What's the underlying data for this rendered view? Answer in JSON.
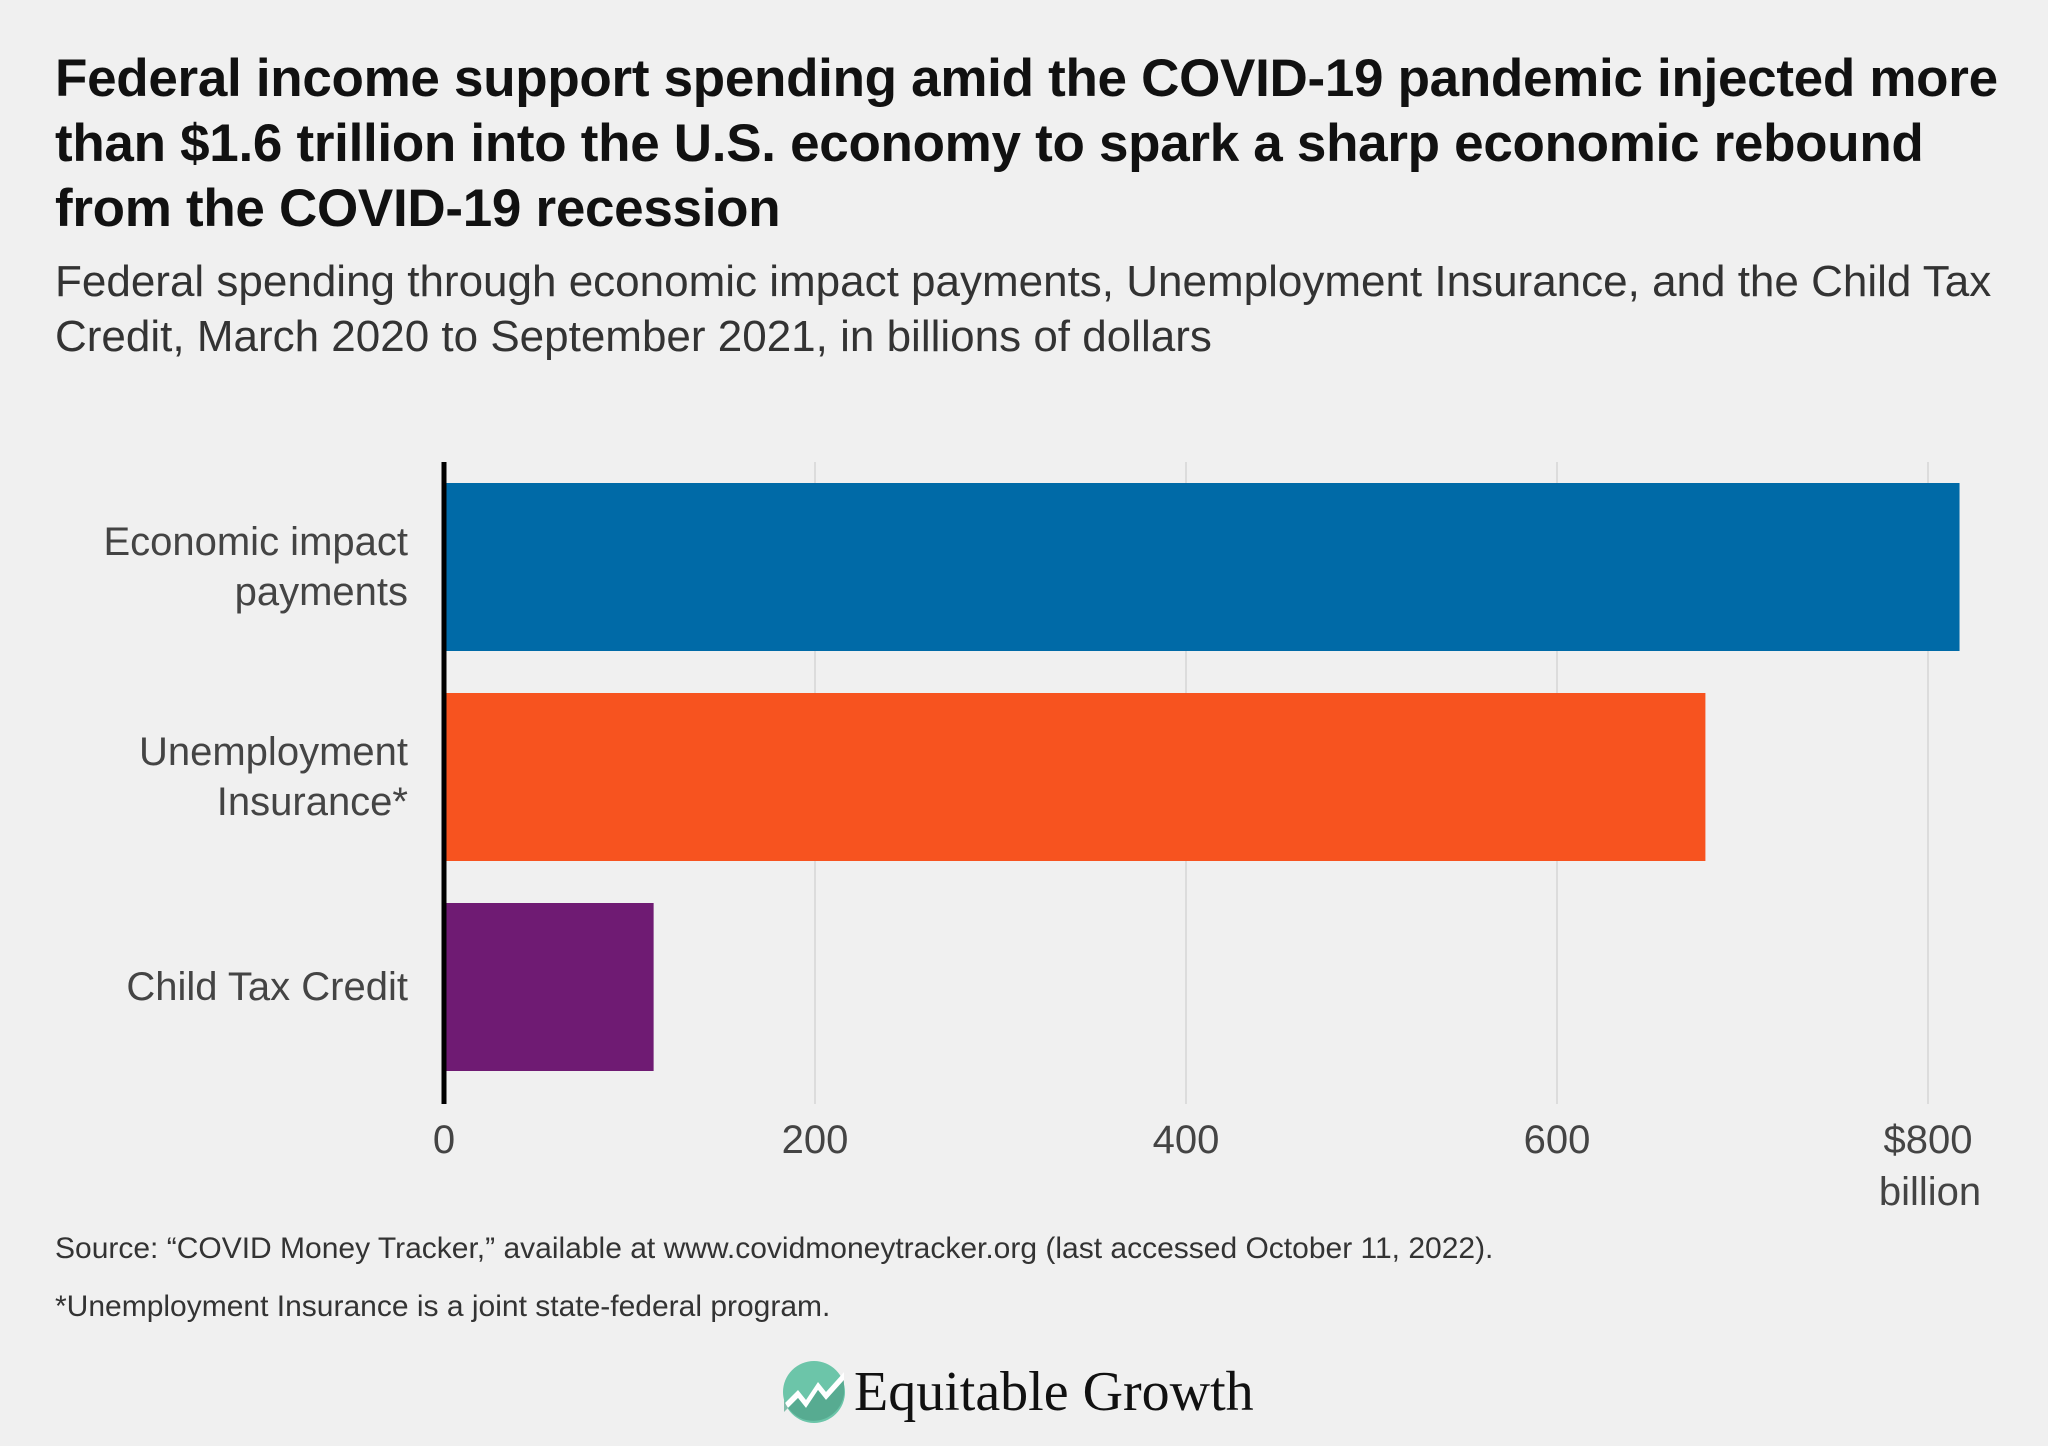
{
  "title": "Federal income support spending amid the COVID-19 pandemic injected more than $1.6 trillion into the U.S. economy to spark a sharp economic rebound from the COVID-19 recession",
  "subtitle": "Federal spending through economic impact payments, Unemployment Insurance, and the Child Tax Credit, March 2020 to September 2021, in billions of dollars",
  "chart_data": {
    "type": "bar",
    "orientation": "horizontal",
    "categories": [
      "Economic impact payments",
      "Unemployment Insurance*",
      "Child Tax Credit"
    ],
    "values": [
      817,
      680,
      113
    ],
    "colors": [
      "#006aa7",
      "#f7531f",
      "#6f1b73"
    ],
    "xlim": [
      0,
      800
    ],
    "xticks": [
      0,
      200,
      400,
      600,
      800
    ],
    "xtick_labels": [
      "0",
      "200",
      "400",
      "600",
      "$800"
    ],
    "xunit_label": "billion",
    "grid": "vertical"
  },
  "source": "Source: “COVID Money Tracker,” available at www.covidmoneytracker.org (last accessed October 11, 2022).",
  "footnote": "*Unemployment Insurance is a joint state-federal program.",
  "logo": {
    "text": "Equitable Growth",
    "icon": "rising-line-circle-logo",
    "color": "#6cc5a9"
  }
}
